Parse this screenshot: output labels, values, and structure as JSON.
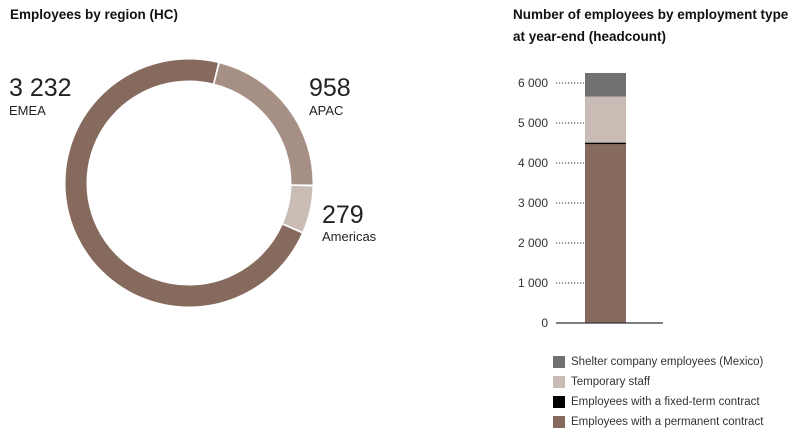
{
  "chart_data": [
    {
      "type": "pie",
      "title": "Employees by region (HC)",
      "slices": [
        {
          "label": "EMEA",
          "value": 3232,
          "value_label": "3 232",
          "color": "#856a5d"
        },
        {
          "label": "APAC",
          "value": 958,
          "value_label": "958",
          "color": "#a68f84"
        },
        {
          "label": "Americas",
          "value": 279,
          "value_label": "279",
          "color": "#c9bcb5"
        }
      ]
    },
    {
      "type": "bar",
      "title": "Number of employees by employment type at year-end (headcount)",
      "stacked": true,
      "ylim": [
        0,
        6000
      ],
      "yticks": [
        0,
        1000,
        2000,
        3000,
        4000,
        5000,
        6000
      ],
      "ytick_labels": [
        "0",
        "1 000",
        "2 000",
        "3 000",
        "4 000",
        "5 000",
        "6 000"
      ],
      "series": [
        {
          "name": "Employees with a permanent contract",
          "value": 4470,
          "color": "#856a5d"
        },
        {
          "name": "Employees with a fixed-term contract",
          "value": 40,
          "color": "#000000"
        },
        {
          "name": "Temporary staff",
          "value": 1150,
          "color": "#c9bcb5"
        },
        {
          "name": "Shelter company employees (Mexico)",
          "value": 590,
          "color": "#717171"
        }
      ],
      "legend_order": [
        "Shelter company employees (Mexico)",
        "Temporary staff",
        "Employees with a fixed-term contract",
        "Employees with a permanent contract"
      ]
    }
  ]
}
